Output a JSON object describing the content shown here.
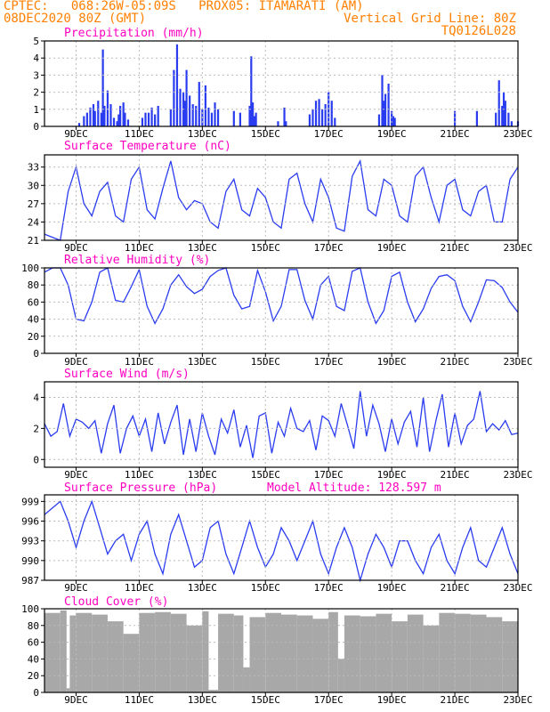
{
  "header": {
    "line1_left": "CPTEC:   068:26W-05:09S   PROX05: ITAMARATI (AM)",
    "line2_left": "08DEC2020 80Z (GMT)",
    "line2_right": "Vertical Grid Line: 80Z",
    "line3_right": "TQ0126L028",
    "color": "#ff8000"
  },
  "colors": {
    "title": "#ff00c0",
    "series": "#2a3cf0",
    "cloud": "#a8a8a8",
    "grid": "#bbbbbb"
  },
  "x_axis": {
    "labels": [
      "9DEC",
      "11DEC",
      "13DEC",
      "15DEC",
      "17DEC",
      "19DEC",
      "21DEC",
      "23DEC"
    ],
    "range_days": [
      0,
      15
    ]
  },
  "chart_data": [
    {
      "type": "bar",
      "title": "Precipitation (mm/h)",
      "ylim": [
        0,
        5
      ],
      "yticks": [
        "0",
        "1",
        "2",
        "3",
        "4",
        "5"
      ],
      "grid": true,
      "x": [
        1.1,
        1.25,
        1.35,
        1.45,
        1.55,
        1.6,
        1.7,
        1.8,
        1.85,
        1.9,
        2.0,
        2.1,
        2.2,
        2.3,
        2.35,
        2.4,
        2.5,
        2.55,
        2.65,
        3.1,
        3.2,
        3.3,
        3.4,
        3.5,
        3.6,
        4.0,
        4.1,
        4.2,
        4.3,
        4.4,
        4.45,
        4.5,
        4.6,
        4.7,
        4.8,
        4.9,
        5.0,
        5.1,
        5.2,
        5.3,
        5.4,
        5.5,
        6.0,
        6.2,
        6.5,
        6.55,
        6.6,
        6.65,
        6.7,
        7.4,
        7.6,
        7.65,
        8.4,
        8.5,
        8.6,
        8.7,
        8.8,
        8.9,
        9.0,
        9.1,
        9.2,
        10.6,
        10.7,
        10.75,
        10.8,
        10.9,
        11.0,
        11.05,
        11.1,
        13.0,
        13.7,
        14.3,
        14.4,
        14.5,
        14.55,
        14.6,
        14.7,
        14.8,
        15.0
      ],
      "values": [
        0.2,
        0.6,
        0.8,
        1.1,
        1.3,
        0.9,
        1.5,
        0.8,
        4.5,
        1.2,
        2.1,
        1.3,
        0.5,
        0.3,
        0.7,
        1.2,
        1.4,
        0.8,
        0.4,
        0.5,
        0.8,
        0.8,
        1.1,
        0.7,
        1.2,
        1.0,
        3.3,
        4.8,
        2.2,
        2.0,
        1.5,
        3.3,
        1.8,
        1.3,
        1.2,
        2.6,
        1.0,
        2.4,
        1.1,
        0.8,
        1.4,
        1.0,
        0.9,
        0.8,
        1.2,
        4.1,
        1.4,
        0.6,
        0.8,
        0.3,
        1.1,
        0.3,
        0.7,
        1.0,
        1.5,
        1.6,
        1.0,
        1.3,
        2.0,
        1.5,
        0.5,
        0.7,
        3.0,
        1.5,
        1.9,
        2.5,
        0.9,
        0.6,
        0.5,
        0.9,
        0.9,
        0.8,
        2.7,
        1.2,
        2.0,
        1.5,
        0.8,
        0.3,
        0.3
      ]
    },
    {
      "type": "line",
      "title": "Surface Temperature (nC)",
      "ylim": [
        21,
        35
      ],
      "yticks": [
        "21",
        "24",
        "27",
        "30",
        "33"
      ],
      "yticks_values": [
        21,
        24,
        27,
        30,
        33
      ],
      "grid": true,
      "x": [
        0,
        0.25,
        0.5,
        0.75,
        1.0,
        1.25,
        1.5,
        1.75,
        2.0,
        2.25,
        2.5,
        2.75,
        3.0,
        3.25,
        3.5,
        3.75,
        4.0,
        4.25,
        4.5,
        4.75,
        5.0,
        5.25,
        5.5,
        5.75,
        6.0,
        6.25,
        6.5,
        6.75,
        7.0,
        7.25,
        7.5,
        7.75,
        8.0,
        8.25,
        8.5,
        8.75,
        9.0,
        9.25,
        9.5,
        9.75,
        10.0,
        10.25,
        10.5,
        10.75,
        11.0,
        11.25,
        11.5,
        11.75,
        12.0,
        12.25,
        12.5,
        12.75,
        13.0,
        13.25,
        13.5,
        13.75,
        14.0,
        14.25,
        14.5,
        14.75,
        15.0
      ],
      "values": [
        22,
        21.5,
        21,
        29,
        33,
        27,
        25,
        29,
        30.5,
        25,
        24,
        31,
        33,
        26,
        24.5,
        29.5,
        34,
        28,
        26,
        27.5,
        27,
        24,
        23,
        29,
        31,
        26,
        25,
        29.5,
        28,
        24,
        23,
        31,
        32,
        27,
        24,
        31,
        28,
        23,
        22.5,
        31.5,
        34,
        26,
        25,
        31,
        30,
        25,
        24,
        31.5,
        33,
        28,
        24,
        30,
        31,
        26,
        25,
        29,
        30,
        24,
        24,
        31,
        33
      ]
    },
    {
      "type": "line",
      "title": "Relative Humidity (%)",
      "ylim": [
        0,
        100
      ],
      "yticks": [
        "0",
        "20",
        "40",
        "60",
        "80",
        "100"
      ],
      "yticks_values": [
        0,
        20,
        40,
        60,
        80,
        100
      ],
      "grid": true,
      "x": [
        0,
        0.25,
        0.5,
        0.75,
        1.0,
        1.25,
        1.5,
        1.75,
        2.0,
        2.25,
        2.5,
        2.75,
        3.0,
        3.25,
        3.5,
        3.75,
        4.0,
        4.25,
        4.5,
        4.75,
        5.0,
        5.25,
        5.5,
        5.75,
        6.0,
        6.25,
        6.5,
        6.75,
        7.0,
        7.25,
        7.5,
        7.75,
        8.0,
        8.25,
        8.5,
        8.75,
        9.0,
        9.25,
        9.5,
        9.75,
        10.0,
        10.25,
        10.5,
        10.75,
        11.0,
        11.25,
        11.5,
        11.75,
        12.0,
        12.25,
        12.5,
        12.75,
        13.0,
        13.25,
        13.5,
        13.75,
        14.0,
        14.25,
        14.5,
        14.75,
        15.0
      ],
      "values": [
        95,
        100,
        100,
        80,
        40,
        38,
        60,
        95,
        100,
        62,
        60,
        78,
        98,
        55,
        35,
        52,
        80,
        92,
        78,
        70,
        75,
        90,
        97,
        100,
        68,
        52,
        55,
        97,
        72,
        38,
        55,
        98,
        98,
        62,
        40,
        80,
        90,
        55,
        50,
        96,
        100,
        60,
        35,
        50,
        90,
        95,
        60,
        37,
        52,
        76,
        90,
        92,
        85,
        55,
        37,
        60,
        86,
        85,
        77,
        60,
        48
      ]
    },
    {
      "type": "line",
      "title": "Surface Wind (m/s)",
      "ylim": [
        -0.5,
        5
      ],
      "yticks": [
        "0",
        "2",
        "4"
      ],
      "yticks_values": [
        0,
        2,
        4
      ],
      "grid": true,
      "x": [
        0,
        0.2,
        0.4,
        0.6,
        0.8,
        1.0,
        1.2,
        1.4,
        1.6,
        1.8,
        2.0,
        2.2,
        2.4,
        2.6,
        2.8,
        3.0,
        3.2,
        3.4,
        3.6,
        3.8,
        4.0,
        4.2,
        4.4,
        4.6,
        4.8,
        5.0,
        5.2,
        5.4,
        5.6,
        5.8,
        6.0,
        6.2,
        6.4,
        6.6,
        6.8,
        7.0,
        7.2,
        7.4,
        7.6,
        7.8,
        8.0,
        8.2,
        8.4,
        8.6,
        8.8,
        9.0,
        9.2,
        9.4,
        9.6,
        9.8,
        10.0,
        10.2,
        10.4,
        10.6,
        10.8,
        11.0,
        11.2,
        11.4,
        11.6,
        11.8,
        12.0,
        12.2,
        12.4,
        12.6,
        12.8,
        13.0,
        13.2,
        13.4,
        13.6,
        13.8,
        14.0,
        14.2,
        14.4,
        14.6,
        14.8,
        15.0
      ],
      "values": [
        2.3,
        1.5,
        1.8,
        3.6,
        1.5,
        2.6,
        2.4,
        2.0,
        2.5,
        0.4,
        2.3,
        3.5,
        0.4,
        2.0,
        2.8,
        1.5,
        2.6,
        0.5,
        3.0,
        1.0,
        2.4,
        3.5,
        0.3,
        2.6,
        0.5,
        3.0,
        1.5,
        0.3,
        2.6,
        1.7,
        3.2,
        0.8,
        2.2,
        0.1,
        2.8,
        3.0,
        0.4,
        2.4,
        1.5,
        3.3,
        2.0,
        1.8,
        2.5,
        0.6,
        2.8,
        2.5,
        1.5,
        3.6,
        2.2,
        0.7,
        4.4,
        1.5,
        3.5,
        2.3,
        0.5,
        2.6,
        1.0,
        2.4,
        3.1,
        0.8,
        4.0,
        0.5,
        2.5,
        4.2,
        0.8,
        3.0,
        1.0,
        2.2,
        2.6,
        4.4,
        1.8,
        2.3,
        1.9,
        2.5,
        1.6,
        1.7
      ]
    },
    {
      "type": "line",
      "title": "Surface Pressure (hPa)",
      "annotation": "Model Altitude: 128.597 m",
      "ylim": [
        987,
        1000
      ],
      "yticks": [
        "987",
        "990",
        "993",
        "996",
        "999"
      ],
      "yticks_values": [
        987,
        990,
        993,
        996,
        999
      ],
      "grid": true,
      "x": [
        0,
        0.25,
        0.5,
        0.75,
        1.0,
        1.25,
        1.5,
        1.75,
        2.0,
        2.25,
        2.5,
        2.75,
        3.0,
        3.25,
        3.5,
        3.75,
        4.0,
        4.25,
        4.5,
        4.75,
        5.0,
        5.25,
        5.5,
        5.75,
        6.0,
        6.25,
        6.5,
        6.75,
        7.0,
        7.25,
        7.5,
        7.75,
        8.0,
        8.25,
        8.5,
        8.75,
        9.0,
        9.25,
        9.5,
        9.75,
        10.0,
        10.25,
        10.5,
        10.75,
        11.0,
        11.25,
        11.5,
        11.75,
        12.0,
        12.25,
        12.5,
        12.75,
        13.0,
        13.25,
        13.5,
        13.75,
        14.0,
        14.25,
        14.5,
        14.75,
        15.0
      ],
      "values": [
        997,
        998,
        999,
        996,
        992,
        996,
        999,
        995,
        991,
        993,
        994,
        990,
        994,
        996,
        991,
        988,
        994,
        997,
        993,
        989,
        990,
        995,
        996,
        991,
        988,
        992,
        996,
        992,
        989,
        991,
        995,
        993,
        990,
        993,
        996,
        991,
        988,
        992,
        995,
        992,
        987,
        991,
        994,
        992,
        989,
        993,
        993,
        990,
        988,
        992,
        994,
        990,
        988,
        992,
        995,
        990,
        989,
        992,
        995,
        991,
        988
      ]
    },
    {
      "type": "area",
      "title": "Cloud Cover (%)",
      "ylim": [
        0,
        100
      ],
      "yticks": [
        "0",
        "20",
        "40",
        "60",
        "80",
        "100"
      ],
      "yticks_values": [
        0,
        20,
        40,
        60,
        80,
        100
      ],
      "grid": true,
      "x": [
        0,
        0.5,
        0.7,
        0.8,
        1.0,
        1.5,
        2.0,
        2.5,
        3.0,
        3.5,
        4.0,
        4.5,
        5.0,
        5.2,
        5.5,
        6.0,
        6.3,
        6.5,
        7.0,
        7.5,
        8.0,
        8.5,
        9.0,
        9.3,
        9.5,
        10.0,
        10.5,
        11.0,
        11.5,
        12.0,
        12.5,
        13.0,
        13.5,
        14.0,
        14.5,
        15.0
      ],
      "values": [
        95,
        98,
        5,
        92,
        95,
        93,
        85,
        70,
        95,
        96,
        94,
        80,
        97,
        3,
        94,
        92,
        30,
        90,
        95,
        93,
        92,
        88,
        96,
        40,
        92,
        91,
        94,
        85,
        93,
        80,
        95,
        94,
        93,
        90,
        85,
        92
      ]
    }
  ]
}
